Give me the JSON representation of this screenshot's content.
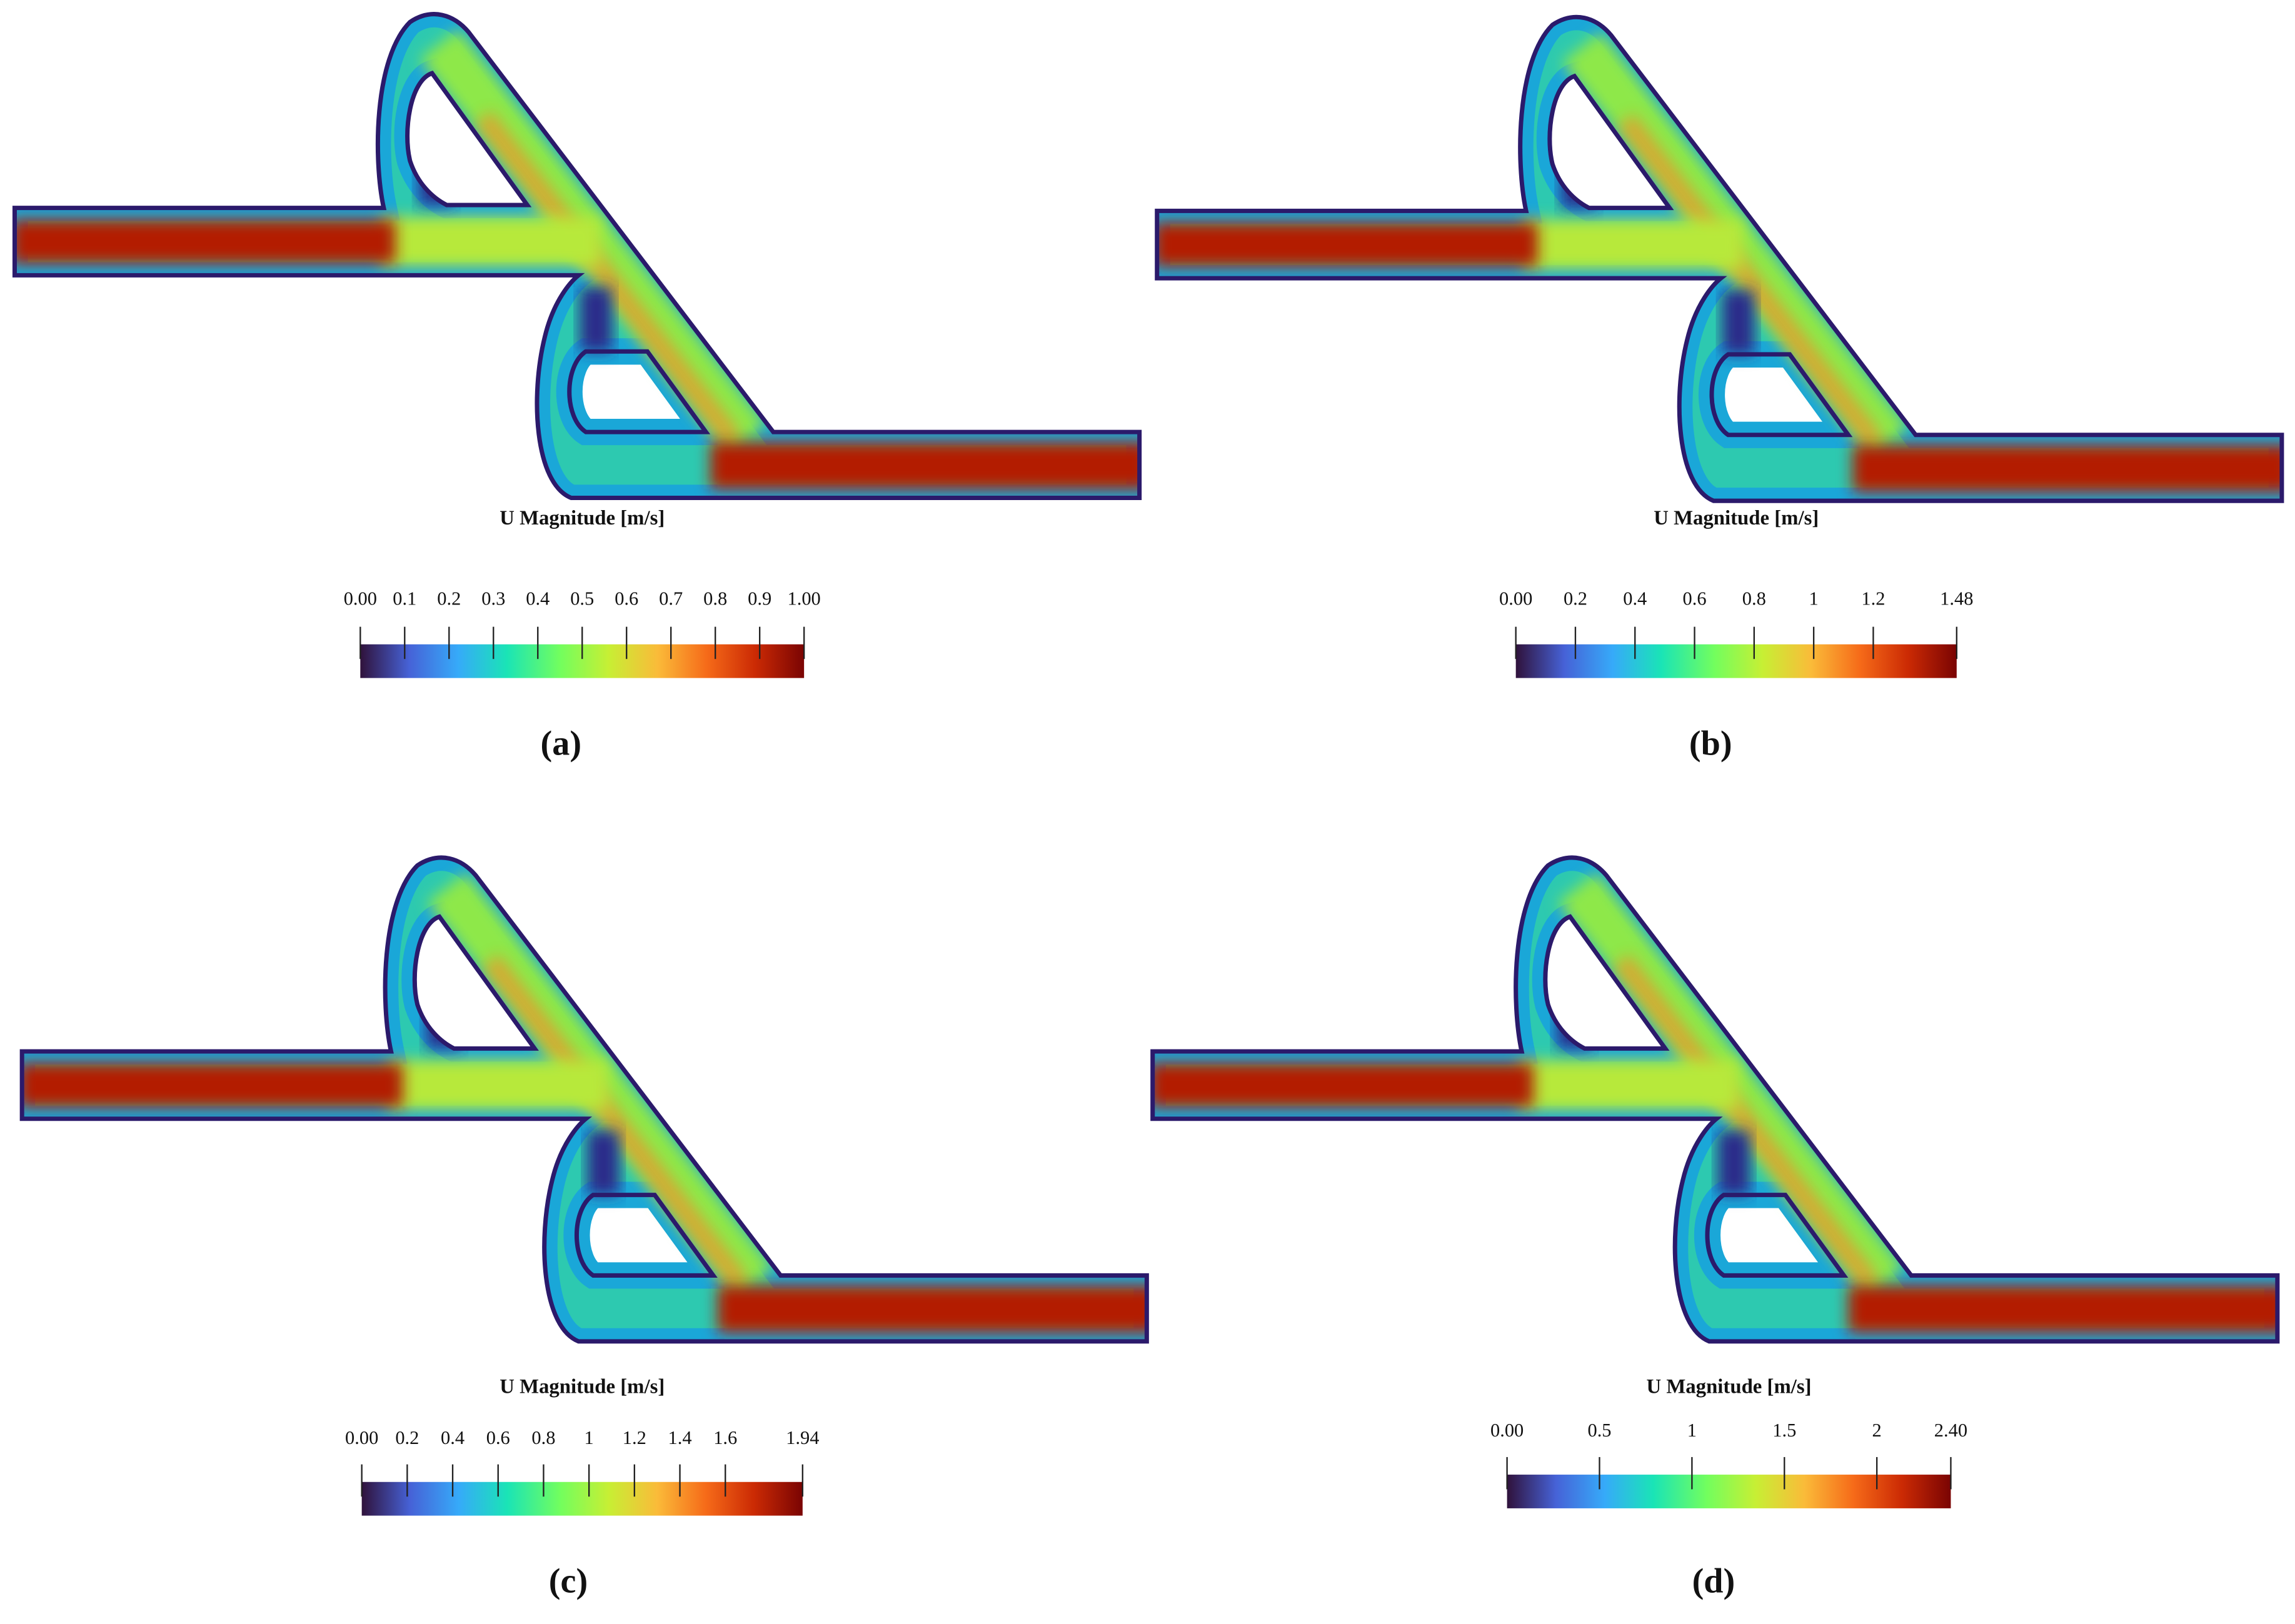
{
  "panels": [
    {
      "label": "(a)",
      "colorbar": {
        "title": "U Magnitude [m/s]",
        "lim": [
          0,
          1
        ],
        "ticks": [
          {
            "value": 0,
            "label": "0.00"
          },
          0.1,
          0.2,
          0.3,
          0.4,
          0.5,
          0.6,
          0.7,
          0.8,
          0.9,
          {
            "value": 1,
            "label": "1.00"
          }
        ]
      }
    },
    {
      "label": "(b)",
      "colorbar": {
        "title": "U Magnitude [m/s]",
        "lim": [
          0,
          1.48
        ],
        "ticks": [
          {
            "value": 0,
            "label": "0.00"
          },
          0.2,
          0.4,
          0.6,
          0.8,
          1,
          1.2,
          1.48
        ]
      }
    },
    {
      "label": "(c)",
      "colorbar": {
        "title": "U Magnitude [m/s]",
        "lim": [
          0,
          1.94
        ],
        "ticks": [
          {
            "value": 0,
            "label": "0.00"
          },
          0.2,
          0.4,
          0.6,
          0.8,
          1,
          1.2,
          1.4,
          1.6,
          1.94
        ]
      }
    },
    {
      "label": "(d)",
      "colorbar": {
        "title": "U Magnitude [m/s]",
        "lim": [
          0,
          2.4
        ],
        "ticks": [
          {
            "value": 0,
            "label": "0.00"
          },
          0.5,
          1,
          1.5,
          2,
          {
            "value": 2.4,
            "label": "2.40"
          }
        ]
      }
    }
  ]
}
